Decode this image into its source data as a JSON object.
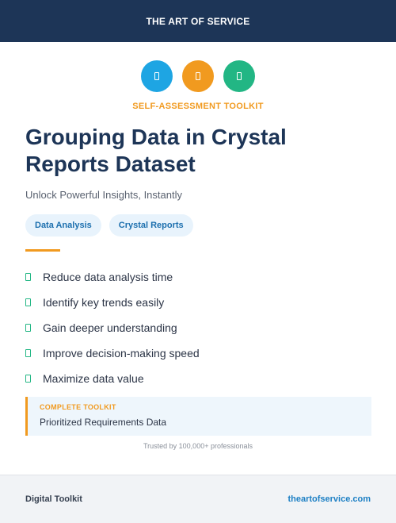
{
  "header": {
    "brand": "THE ART OF SERVICE"
  },
  "icons": [
    {
      "name": "document-icon",
      "color": "#1ea5e3"
    },
    {
      "name": "document-icon",
      "color": "#f19a1f"
    },
    {
      "name": "document-icon",
      "color": "#22b684"
    }
  ],
  "kicker": "SELF-ASSESSMENT TOOLKIT",
  "title": "Grouping Data in Crystal Reports Dataset",
  "subtitle": "Unlock Powerful Insights, Instantly",
  "tags": [
    "Data Analysis",
    "Crystal Reports"
  ],
  "benefits": [
    "Reduce data analysis time",
    "Identify key trends easily",
    "Gain deeper understanding",
    "Improve decision-making speed",
    "Maximize data value"
  ],
  "callout": {
    "label": "COMPLETE TOOLKIT",
    "value": "Prioritized Requirements Data"
  },
  "trust": "Trusted by 100,000+ professionals",
  "footer": {
    "left": "Digital Toolkit",
    "right": "theartofservice.com"
  },
  "colors": {
    "navy": "#1d3557",
    "accent_orange": "#f19a1f",
    "accent_blue": "#1ea5e3",
    "accent_green": "#22b684"
  }
}
